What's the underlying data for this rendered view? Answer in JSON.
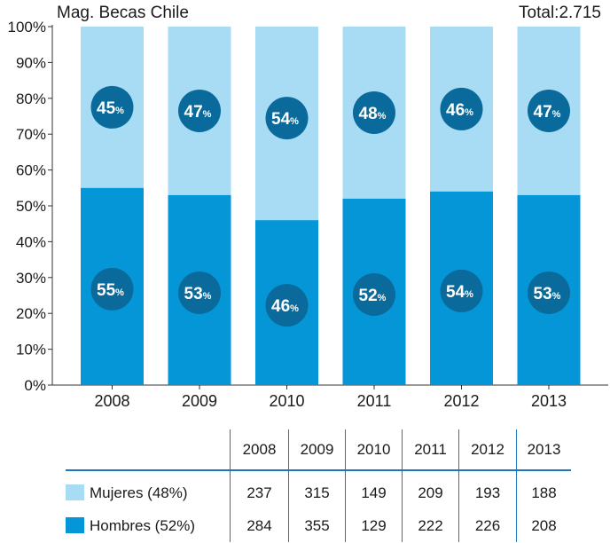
{
  "header": {
    "subtitle": "Mag. Becas Chile",
    "total": "Total:2.715"
  },
  "colors": {
    "mujeres": "#a8dcf4",
    "hombres": "#0596d8",
    "badge": "#0a6a9b",
    "axis": "#333333",
    "table_line": "#1d76c0"
  },
  "chart_data": {
    "type": "bar",
    "stacked": true,
    "categories": [
      "2008",
      "2009",
      "2010",
      "2011",
      "2012",
      "2013"
    ],
    "series": [
      {
        "name": "Hombres",
        "values": [
          55,
          53,
          46,
          52,
          54,
          53
        ],
        "labels": [
          "55",
          "53",
          "46",
          "52",
          "54",
          "53"
        ]
      },
      {
        "name": "Mujeres",
        "values": [
          45,
          47,
          54,
          48,
          46,
          47
        ],
        "labels": [
          "45",
          "47",
          "54",
          "48",
          "46",
          "47"
        ]
      }
    ],
    "label_suffix": "%",
    "ylim": [
      0,
      100
    ],
    "yticks": [
      "0%",
      "10%",
      "20%",
      "30%",
      "40%",
      "50%",
      "60%",
      "70%",
      "80%",
      "90%",
      "100%"
    ],
    "grid": false
  },
  "table": {
    "years": [
      "2008",
      "2009",
      "2010",
      "2011",
      "2012",
      "2013"
    ],
    "rows": [
      {
        "label": "Mujeres (48%)",
        "values": [
          "237",
          "315",
          "149",
          "209",
          "193",
          "188"
        ]
      },
      {
        "label": "Hombres (52%)",
        "values": [
          "284",
          "355",
          "129",
          "222",
          "226",
          "208"
        ]
      }
    ]
  }
}
